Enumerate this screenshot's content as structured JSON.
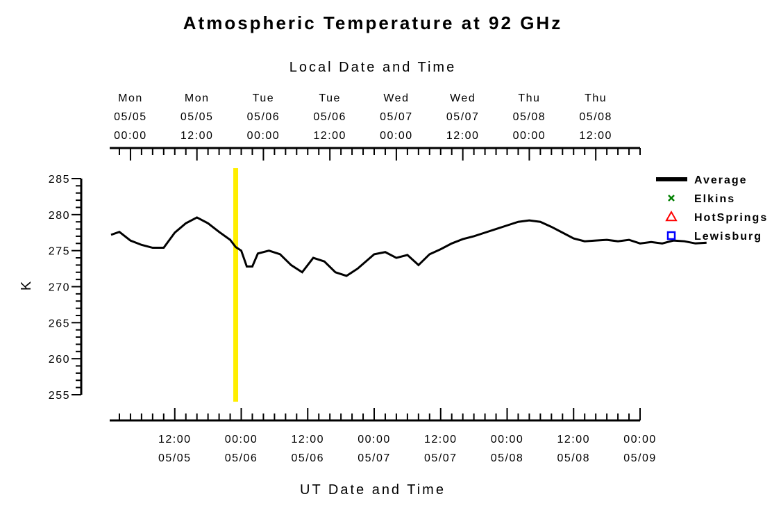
{
  "chart_data": {
    "type": "scatter",
    "title": "Atmospheric Temperature at 92 GHz",
    "ylabel": "K",
    "ylim": [
      255,
      285
    ],
    "yticks": [
      255,
      260,
      265,
      270,
      275,
      280,
      285
    ],
    "bottom_axis": {
      "label": "UT Date and Time",
      "tick_labels": [
        {
          "time": "12:00",
          "date": "05/05"
        },
        {
          "time": "00:00",
          "date": "05/06"
        },
        {
          "time": "12:00",
          "date": "05/06"
        },
        {
          "time": "00:00",
          "date": "05/07"
        },
        {
          "time": "12:00",
          "date": "05/07"
        },
        {
          "time": "00:00",
          "date": "05/08"
        },
        {
          "time": "12:00",
          "date": "05/08"
        },
        {
          "time": "00:00",
          "date": "05/09"
        }
      ]
    },
    "top_axis": {
      "label": "Local Date and Time",
      "tick_labels": [
        {
          "day": "Mon",
          "date": "05/05",
          "time": "00:00"
        },
        {
          "day": "Mon",
          "date": "05/05",
          "time": "12:00"
        },
        {
          "day": "Tue",
          "date": "05/06",
          "time": "00:00"
        },
        {
          "day": "Tue",
          "date": "05/06",
          "time": "12:00"
        },
        {
          "day": "Wed",
          "date": "05/07",
          "time": "00:00"
        },
        {
          "day": "Wed",
          "date": "05/07",
          "time": "12:00"
        },
        {
          "day": "Thu",
          "date": "05/08",
          "time": "00:00"
        },
        {
          "day": "Thu",
          "date": "05/08",
          "time": "12:00"
        }
      ]
    },
    "xlim": [
      "05/05 00:30",
      "05/09 00:00"
    ],
    "marker_time": "05/05 23:00",
    "marker_color": "#ffee00",
    "legend_position": "right",
    "series": [
      {
        "name": "Average",
        "style": "line",
        "color": "#000000",
        "points": [
          [
            "05/05 00:30",
            277.2
          ],
          [
            "05/05 02:00",
            277.6
          ],
          [
            "05/05 04:00",
            276.4
          ],
          [
            "05/05 06:00",
            275.8
          ],
          [
            "05/05 08:00",
            275.4
          ],
          [
            "05/05 10:00",
            275.4
          ],
          [
            "05/05 12:00",
            277.5
          ],
          [
            "05/05 14:00",
            278.8
          ],
          [
            "05/05 16:00",
            279.6
          ],
          [
            "05/05 18:00",
            278.8
          ],
          [
            "05/05 20:00",
            277.6
          ],
          [
            "05/05 22:00",
            276.5
          ],
          [
            "05/05 23:00",
            275.5
          ],
          [
            "05/06 00:00",
            275.0
          ],
          [
            "05/06 01:00",
            272.8
          ],
          [
            "05/06 02:00",
            272.8
          ],
          [
            "05/06 03:00",
            274.6
          ],
          [
            "05/06 05:00",
            275.0
          ],
          [
            "05/06 07:00",
            274.5
          ],
          [
            "05/06 09:00",
            273.0
          ],
          [
            "05/06 11:00",
            272.0
          ],
          [
            "05/06 13:00",
            274.0
          ],
          [
            "05/06 15:00",
            273.5
          ],
          [
            "05/06 17:00",
            272.0
          ],
          [
            "05/06 19:00",
            271.5
          ],
          [
            "05/06 21:00",
            272.5
          ],
          [
            "05/07 00:00",
            274.5
          ],
          [
            "05/07 02:00",
            274.8
          ],
          [
            "05/07 04:00",
            274.0
          ],
          [
            "05/07 06:00",
            274.4
          ],
          [
            "05/07 08:00",
            273.0
          ],
          [
            "05/07 10:00",
            274.5
          ],
          [
            "05/07 12:00",
            275.2
          ],
          [
            "05/07 14:00",
            276.0
          ],
          [
            "05/07 16:00",
            276.6
          ],
          [
            "05/07 18:00",
            277.0
          ],
          [
            "05/07 20:00",
            277.5
          ],
          [
            "05/07 22:00",
            278.0
          ],
          [
            "05/08 00:00",
            278.5
          ],
          [
            "05/08 02:00",
            279.0
          ],
          [
            "05/08 04:00",
            279.2
          ],
          [
            "05/08 06:00",
            279.0
          ],
          [
            "05/08 08:00",
            278.3
          ],
          [
            "05/08 10:00",
            277.5
          ],
          [
            "05/08 12:00",
            276.7
          ],
          [
            "05/08 14:00",
            276.3
          ],
          [
            "05/08 16:00",
            276.4
          ],
          [
            "05/08 18:00",
            276.5
          ],
          [
            "05/08 20:00",
            276.3
          ],
          [
            "05/08 22:00",
            276.5
          ],
          [
            "05/09 00:00",
            276.0
          ],
          [
            "05/09 02:00",
            276.2
          ],
          [
            "05/09 04:00",
            276.0
          ],
          [
            "05/09 06:00",
            276.4
          ],
          [
            "05/09 08:00",
            276.3
          ],
          [
            "05/09 10:00",
            276.0
          ],
          [
            "05/09 12:00",
            276.1
          ]
        ]
      },
      {
        "name": "Elkins",
        "style": "x",
        "color": "#008000",
        "points": []
      },
      {
        "name": "HotSprings",
        "style": "triangle",
        "color": "#ff0000",
        "points": []
      },
      {
        "name": "Lewisburg",
        "style": "square",
        "color": "#0000ff",
        "points": []
      }
    ]
  }
}
